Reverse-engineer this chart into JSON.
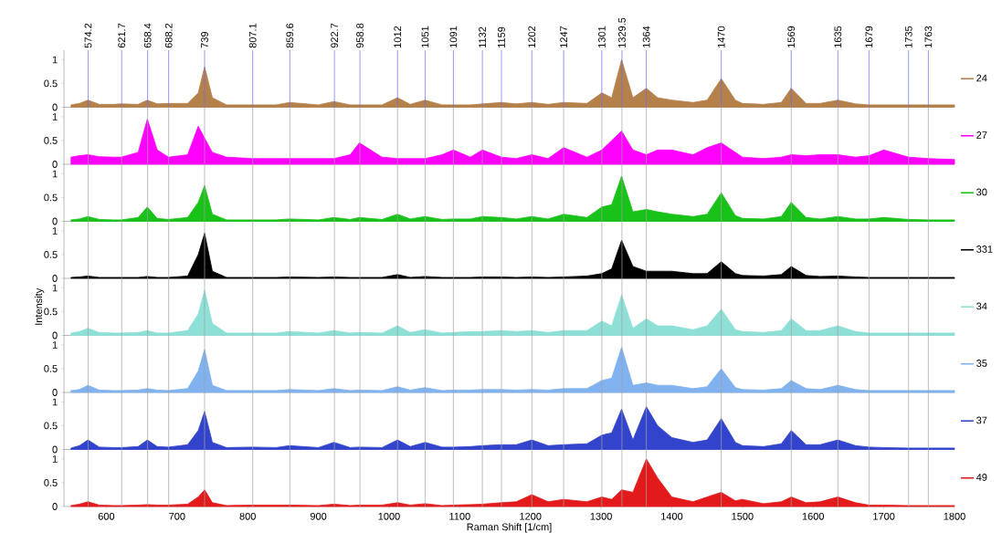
{
  "chart_data": [
    {
      "type": "area",
      "x": [
        550,
        562,
        574,
        590,
        610,
        621,
        645,
        658,
        672,
        688,
        715,
        730,
        739,
        750,
        770,
        807,
        840,
        859,
        900,
        922,
        945,
        958,
        990,
        1012,
        1030,
        1051,
        1075,
        1091,
        1115,
        1132,
        1159,
        1180,
        1202,
        1225,
        1247,
        1280,
        1301,
        1315,
        1329,
        1345,
        1364,
        1380,
        1400,
        1430,
        1450,
        1470,
        1490,
        1500,
        1530,
        1555,
        1569,
        1590,
        1610,
        1635,
        1660,
        1679,
        1700,
        1735,
        1763,
        1800
      ],
      "xlim": [
        540,
        1800
      ],
      "ylim": [
        0,
        1.2
      ],
      "yticks": [
        0,
        0.5,
        1
      ],
      "tick_labels": "y",
      "legend": "right",
      "series": [
        {
          "name": "24",
          "color": "#b5814a",
          "values": [
            0.05,
            0.08,
            0.15,
            0.06,
            0.06,
            0.07,
            0.06,
            0.15,
            0.07,
            0.08,
            0.08,
            0.3,
            0.85,
            0.2,
            0.05,
            0.05,
            0.05,
            0.1,
            0.05,
            0.12,
            0.05,
            0.05,
            0.05,
            0.2,
            0.06,
            0.15,
            0.05,
            0.05,
            0.05,
            0.07,
            0.1,
            0.07,
            0.1,
            0.06,
            0.1,
            0.08,
            0.3,
            0.2,
            1.0,
            0.2,
            0.4,
            0.2,
            0.15,
            0.1,
            0.15,
            0.6,
            0.15,
            0.08,
            0.06,
            0.1,
            0.4,
            0.08,
            0.08,
            0.15,
            0.07,
            0.05,
            0.05,
            0.05,
            0.05,
            0.05
          ]
        }
      ],
      "ref_lines": [
        {
          "axis": "x",
          "value": 574.2,
          "label": "574.2",
          "color": "#6a6aee"
        },
        {
          "axis": "x",
          "value": 621.7,
          "label": "621.7",
          "color": "#6a6aee"
        },
        {
          "axis": "x",
          "value": 658.4,
          "label": "658.4",
          "color": "#6a6aee"
        },
        {
          "axis": "x",
          "value": 688.2,
          "label": "688.2",
          "color": "#6a6aee"
        },
        {
          "axis": "x",
          "value": 739,
          "label": "739",
          "color": "#6a6aee"
        },
        {
          "axis": "x",
          "value": 807.1,
          "label": "807.1",
          "color": "#6a6aee"
        },
        {
          "axis": "x",
          "value": 859.6,
          "label": "859.6",
          "color": "#6a6aee"
        },
        {
          "axis": "x",
          "value": 922.7,
          "label": "922.7",
          "color": "#6a6aee"
        },
        {
          "axis": "x",
          "value": 958.8,
          "label": "958.8",
          "color": "#6a6aee"
        },
        {
          "axis": "x",
          "value": 1012,
          "label": "1012",
          "color": "#6a6aee"
        },
        {
          "axis": "x",
          "value": 1051,
          "label": "1051",
          "color": "#6a6aee"
        },
        {
          "axis": "x",
          "value": 1091,
          "label": "1091",
          "color": "#6a6aee"
        },
        {
          "axis": "x",
          "value": 1132,
          "label": "1132",
          "color": "#6a6aee"
        },
        {
          "axis": "x",
          "value": 1159,
          "label": "1159",
          "color": "#6a6aee"
        },
        {
          "axis": "x",
          "value": 1202,
          "label": "1202",
          "color": "#6a6aee"
        },
        {
          "axis": "x",
          "value": 1247,
          "label": "1247",
          "color": "#6a6aee"
        },
        {
          "axis": "x",
          "value": 1301,
          "label": "1301",
          "color": "#6a6aee"
        },
        {
          "axis": "x",
          "value": 1329.5,
          "label": "1329.5",
          "color": "#6a6aee"
        },
        {
          "axis": "x",
          "value": 1364,
          "label": "1364",
          "color": "#6a6aee"
        },
        {
          "axis": "x",
          "value": 1470,
          "label": "1470",
          "color": "#6a6aee"
        },
        {
          "axis": "x",
          "value": 1569,
          "label": "1569",
          "color": "#6a6aee"
        },
        {
          "axis": "x",
          "value": 1635,
          "label": "1635",
          "color": "#6a6aee"
        },
        {
          "axis": "x",
          "value": 1679,
          "label": "1679",
          "color": "#6a6aee"
        },
        {
          "axis": "x",
          "value": 1735,
          "label": "1735",
          "color": "#6a6aee"
        },
        {
          "axis": "x",
          "value": 1763,
          "label": "1763",
          "color": "#6a6aee"
        }
      ]
    },
    {
      "type": "area",
      "x": [
        550,
        562,
        574,
        590,
        610,
        621,
        645,
        658,
        672,
        688,
        715,
        730,
        739,
        750,
        770,
        807,
        840,
        859,
        900,
        922,
        945,
        958,
        990,
        1012,
        1030,
        1051,
        1075,
        1091,
        1115,
        1132,
        1159,
        1180,
        1202,
        1225,
        1247,
        1280,
        1301,
        1315,
        1329,
        1345,
        1364,
        1380,
        1400,
        1430,
        1450,
        1470,
        1490,
        1500,
        1530,
        1555,
        1569,
        1590,
        1610,
        1635,
        1660,
        1679,
        1700,
        1735,
        1763,
        1800
      ],
      "xlim": [
        540,
        1800
      ],
      "ylim": [
        0,
        1.2
      ],
      "yticks": [
        0,
        0.5,
        1
      ],
      "tick_labels": "y",
      "legend": "right",
      "series": [
        {
          "name": "27",
          "color": "#ff00ff",
          "values": [
            0.15,
            0.18,
            0.2,
            0.16,
            0.15,
            0.15,
            0.25,
            0.95,
            0.3,
            0.15,
            0.2,
            0.8,
            0.55,
            0.25,
            0.15,
            0.12,
            0.12,
            0.12,
            0.12,
            0.12,
            0.2,
            0.45,
            0.15,
            0.12,
            0.12,
            0.12,
            0.2,
            0.3,
            0.15,
            0.3,
            0.15,
            0.12,
            0.2,
            0.12,
            0.35,
            0.15,
            0.3,
            0.5,
            0.7,
            0.3,
            0.2,
            0.3,
            0.3,
            0.2,
            0.35,
            0.45,
            0.25,
            0.15,
            0.12,
            0.15,
            0.2,
            0.18,
            0.2,
            0.2,
            0.15,
            0.18,
            0.3,
            0.15,
            0.12,
            0.1
          ]
        }
      ],
      "ref_lines": [
        {
          "axis": "x",
          "value": 574.2,
          "color": "#a0a0a0"
        },
        {
          "axis": "x",
          "value": 621.7,
          "color": "#a0a0a0"
        },
        {
          "axis": "x",
          "value": 658.4,
          "color": "#a0a0a0"
        },
        {
          "axis": "x",
          "value": 688.2,
          "color": "#a0a0a0"
        },
        {
          "axis": "x",
          "value": 739,
          "color": "#a0a0a0"
        },
        {
          "axis": "x",
          "value": 807.1,
          "color": "#a0a0a0"
        },
        {
          "axis": "x",
          "value": 859.6,
          "color": "#a0a0a0"
        },
        {
          "axis": "x",
          "value": 922.7,
          "color": "#a0a0a0"
        },
        {
          "axis": "x",
          "value": 958.8,
          "color": "#a0a0a0"
        },
        {
          "axis": "x",
          "value": 1012,
          "color": "#a0a0a0"
        },
        {
          "axis": "x",
          "value": 1051,
          "color": "#a0a0a0"
        },
        {
          "axis": "x",
          "value": 1091,
          "color": "#a0a0a0"
        },
        {
          "axis": "x",
          "value": 1132,
          "color": "#a0a0a0"
        },
        {
          "axis": "x",
          "value": 1159,
          "color": "#a0a0a0"
        },
        {
          "axis": "x",
          "value": 1202,
          "color": "#a0a0a0"
        },
        {
          "axis": "x",
          "value": 1247,
          "color": "#a0a0a0"
        },
        {
          "axis": "x",
          "value": 1301,
          "color": "#a0a0a0"
        },
        {
          "axis": "x",
          "value": 1329.5,
          "color": "#a0a0a0"
        },
        {
          "axis": "x",
          "value": 1364,
          "color": "#a0a0a0"
        },
        {
          "axis": "x",
          "value": 1470,
          "color": "#a0a0a0"
        },
        {
          "axis": "x",
          "value": 1569,
          "color": "#a0a0a0"
        },
        {
          "axis": "x",
          "value": 1635,
          "color": "#a0a0a0"
        },
        {
          "axis": "x",
          "value": 1679,
          "color": "#a0a0a0"
        },
        {
          "axis": "x",
          "value": 1735,
          "color": "#a0a0a0"
        },
        {
          "axis": "x",
          "value": 1763,
          "color": "#a0a0a0"
        }
      ]
    },
    {
      "type": "area",
      "x": [
        550,
        562,
        574,
        590,
        610,
        621,
        645,
        658,
        672,
        688,
        715,
        730,
        739,
        750,
        770,
        807,
        840,
        859,
        900,
        922,
        945,
        958,
        990,
        1012,
        1030,
        1051,
        1075,
        1091,
        1115,
        1132,
        1159,
        1180,
        1202,
        1225,
        1247,
        1280,
        1301,
        1315,
        1329,
        1345,
        1364,
        1380,
        1400,
        1430,
        1450,
        1470,
        1490,
        1500,
        1530,
        1555,
        1569,
        1590,
        1610,
        1635,
        1660,
        1679,
        1700,
        1735,
        1763,
        1800
      ],
      "xlim": [
        540,
        1800
      ],
      "ylim": [
        0,
        1.2
      ],
      "yticks": [
        0,
        0.5,
        1
      ],
      "tick_labels": "y",
      "legend": "right",
      "series": [
        {
          "name": "30",
          "color": "#19c219",
          "values": [
            0.03,
            0.05,
            0.1,
            0.04,
            0.03,
            0.03,
            0.08,
            0.3,
            0.06,
            0.04,
            0.08,
            0.4,
            0.75,
            0.15,
            0.03,
            0.03,
            0.03,
            0.05,
            0.03,
            0.08,
            0.04,
            0.08,
            0.04,
            0.15,
            0.05,
            0.1,
            0.04,
            0.05,
            0.05,
            0.1,
            0.08,
            0.05,
            0.1,
            0.05,
            0.15,
            0.08,
            0.3,
            0.35,
            0.95,
            0.2,
            0.25,
            0.2,
            0.15,
            0.1,
            0.15,
            0.6,
            0.12,
            0.06,
            0.05,
            0.1,
            0.4,
            0.08,
            0.05,
            0.1,
            0.05,
            0.05,
            0.08,
            0.04,
            0.03,
            0.03
          ]
        }
      ],
      "ref_lines": [
        {
          "axis": "x",
          "value": 574.2,
          "color": "#a0a0a0"
        },
        {
          "axis": "x",
          "value": 621.7,
          "color": "#a0a0a0"
        },
        {
          "axis": "x",
          "value": 658.4,
          "color": "#a0a0a0"
        },
        {
          "axis": "x",
          "value": 688.2,
          "color": "#a0a0a0"
        },
        {
          "axis": "x",
          "value": 739,
          "color": "#a0a0a0"
        },
        {
          "axis": "x",
          "value": 807.1,
          "color": "#a0a0a0"
        },
        {
          "axis": "x",
          "value": 859.6,
          "color": "#a0a0a0"
        },
        {
          "axis": "x",
          "value": 922.7,
          "color": "#a0a0a0"
        },
        {
          "axis": "x",
          "value": 958.8,
          "color": "#a0a0a0"
        },
        {
          "axis": "x",
          "value": 1012,
          "color": "#a0a0a0"
        },
        {
          "axis": "x",
          "value": 1051,
          "color": "#a0a0a0"
        },
        {
          "axis": "x",
          "value": 1091,
          "color": "#a0a0a0"
        },
        {
          "axis": "x",
          "value": 1132,
          "color": "#a0a0a0"
        },
        {
          "axis": "x",
          "value": 1159,
          "color": "#a0a0a0"
        },
        {
          "axis": "x",
          "value": 1202,
          "color": "#a0a0a0"
        },
        {
          "axis": "x",
          "value": 1247,
          "color": "#a0a0a0"
        },
        {
          "axis": "x",
          "value": 1301,
          "color": "#a0a0a0"
        },
        {
          "axis": "x",
          "value": 1329.5,
          "color": "#a0a0a0"
        },
        {
          "axis": "x",
          "value": 1364,
          "color": "#a0a0a0"
        },
        {
          "axis": "x",
          "value": 1470,
          "color": "#a0a0a0"
        },
        {
          "axis": "x",
          "value": 1569,
          "color": "#a0a0a0"
        },
        {
          "axis": "x",
          "value": 1635,
          "color": "#a0a0a0"
        },
        {
          "axis": "x",
          "value": 1679,
          "color": "#a0a0a0"
        },
        {
          "axis": "x",
          "value": 1735,
          "color": "#a0a0a0"
        },
        {
          "axis": "x",
          "value": 1763,
          "color": "#a0a0a0"
        }
      ]
    },
    {
      "type": "area",
      "x": [
        550,
        562,
        574,
        590,
        610,
        621,
        645,
        658,
        672,
        688,
        715,
        730,
        739,
        750,
        770,
        807,
        840,
        859,
        900,
        922,
        945,
        958,
        990,
        1012,
        1030,
        1051,
        1075,
        1091,
        1115,
        1132,
        1159,
        1180,
        1202,
        1225,
        1247,
        1280,
        1301,
        1315,
        1329,
        1345,
        1364,
        1380,
        1400,
        1430,
        1450,
        1470,
        1490,
        1500,
        1530,
        1555,
        1569,
        1590,
        1610,
        1635,
        1660,
        1679,
        1700,
        1735,
        1763,
        1800
      ],
      "xlim": [
        540,
        1800
      ],
      "ylim": [
        0,
        1.2
      ],
      "yticks": [
        0,
        0.5,
        1
      ],
      "tick_labels": "y",
      "legend": "right",
      "series": [
        {
          "name": "331",
          "color": "#000000",
          "values": [
            0.02,
            0.03,
            0.05,
            0.02,
            0.02,
            0.02,
            0.02,
            0.04,
            0.02,
            0.02,
            0.05,
            0.5,
            0.95,
            0.15,
            0.02,
            0.02,
            0.02,
            0.03,
            0.02,
            0.03,
            0.02,
            0.02,
            0.02,
            0.08,
            0.02,
            0.04,
            0.02,
            0.02,
            0.02,
            0.03,
            0.03,
            0.02,
            0.03,
            0.02,
            0.03,
            0.05,
            0.1,
            0.2,
            0.8,
            0.25,
            0.15,
            0.15,
            0.15,
            0.1,
            0.1,
            0.35,
            0.1,
            0.06,
            0.05,
            0.08,
            0.25,
            0.06,
            0.04,
            0.05,
            0.03,
            0.02,
            0.02,
            0.02,
            0.02,
            0.02
          ]
        }
      ],
      "ref_lines": [
        {
          "axis": "x",
          "value": 574.2,
          "color": "#a0a0a0"
        },
        {
          "axis": "x",
          "value": 621.7,
          "color": "#a0a0a0"
        },
        {
          "axis": "x",
          "value": 658.4,
          "color": "#a0a0a0"
        },
        {
          "axis": "x",
          "value": 688.2,
          "color": "#a0a0a0"
        },
        {
          "axis": "x",
          "value": 739,
          "color": "#a0a0a0"
        },
        {
          "axis": "x",
          "value": 807.1,
          "color": "#a0a0a0"
        },
        {
          "axis": "x",
          "value": 859.6,
          "color": "#a0a0a0"
        },
        {
          "axis": "x",
          "value": 922.7,
          "color": "#a0a0a0"
        },
        {
          "axis": "x",
          "value": 958.8,
          "color": "#a0a0a0"
        },
        {
          "axis": "x",
          "value": 1012,
          "color": "#a0a0a0"
        },
        {
          "axis": "x",
          "value": 1051,
          "color": "#a0a0a0"
        },
        {
          "axis": "x",
          "value": 1091,
          "color": "#a0a0a0"
        },
        {
          "axis": "x",
          "value": 1132,
          "color": "#a0a0a0"
        },
        {
          "axis": "x",
          "value": 1159,
          "color": "#a0a0a0"
        },
        {
          "axis": "x",
          "value": 1202,
          "color": "#a0a0a0"
        },
        {
          "axis": "x",
          "value": 1247,
          "color": "#a0a0a0"
        },
        {
          "axis": "x",
          "value": 1301,
          "color": "#a0a0a0"
        },
        {
          "axis": "x",
          "value": 1329.5,
          "color": "#a0a0a0"
        },
        {
          "axis": "x",
          "value": 1364,
          "color": "#a0a0a0"
        },
        {
          "axis": "x",
          "value": 1470,
          "color": "#a0a0a0"
        },
        {
          "axis": "x",
          "value": 1569,
          "color": "#a0a0a0"
        },
        {
          "axis": "x",
          "value": 1635,
          "color": "#a0a0a0"
        },
        {
          "axis": "x",
          "value": 1679,
          "color": "#a0a0a0"
        },
        {
          "axis": "x",
          "value": 1735,
          "color": "#a0a0a0"
        },
        {
          "axis": "x",
          "value": 1763,
          "color": "#a0a0a0"
        }
      ]
    },
    {
      "type": "area",
      "ylabel": "Intensity",
      "x": [
        550,
        562,
        574,
        590,
        610,
        621,
        645,
        658,
        672,
        688,
        715,
        730,
        739,
        750,
        770,
        807,
        840,
        859,
        900,
        922,
        945,
        958,
        990,
        1012,
        1030,
        1051,
        1075,
        1091,
        1115,
        1132,
        1159,
        1180,
        1202,
        1225,
        1247,
        1280,
        1301,
        1315,
        1329,
        1345,
        1364,
        1380,
        1400,
        1430,
        1450,
        1470,
        1490,
        1500,
        1530,
        1555,
        1569,
        1590,
        1610,
        1635,
        1660,
        1679,
        1700,
        1735,
        1763,
        1800
      ],
      "xlim": [
        540,
        1800
      ],
      "ylim": [
        0,
        1.2
      ],
      "yticks": [
        0,
        0.5,
        1
      ],
      "tick_labels": "y",
      "legend": "right",
      "series": [
        {
          "name": "34",
          "color": "#8ee0d6",
          "values": [
            0.05,
            0.08,
            0.15,
            0.06,
            0.05,
            0.05,
            0.06,
            0.1,
            0.05,
            0.05,
            0.1,
            0.45,
            0.95,
            0.25,
            0.05,
            0.05,
            0.05,
            0.08,
            0.05,
            0.1,
            0.05,
            0.06,
            0.05,
            0.2,
            0.06,
            0.12,
            0.05,
            0.06,
            0.08,
            0.08,
            0.1,
            0.08,
            0.1,
            0.06,
            0.1,
            0.1,
            0.3,
            0.2,
            0.85,
            0.15,
            0.35,
            0.2,
            0.2,
            0.12,
            0.2,
            0.55,
            0.12,
            0.08,
            0.06,
            0.1,
            0.35,
            0.1,
            0.1,
            0.2,
            0.08,
            0.05,
            0.05,
            0.05,
            0.05,
            0.05
          ]
        }
      ],
      "ref_lines": [
        {
          "axis": "x",
          "value": 574.2,
          "color": "#a0a0a0"
        },
        {
          "axis": "x",
          "value": 621.7,
          "color": "#a0a0a0"
        },
        {
          "axis": "x",
          "value": 658.4,
          "color": "#a0a0a0"
        },
        {
          "axis": "x",
          "value": 688.2,
          "color": "#a0a0a0"
        },
        {
          "axis": "x",
          "value": 739,
          "color": "#a0a0a0"
        },
        {
          "axis": "x",
          "value": 807.1,
          "color": "#a0a0a0"
        },
        {
          "axis": "x",
          "value": 859.6,
          "color": "#a0a0a0"
        },
        {
          "axis": "x",
          "value": 922.7,
          "color": "#a0a0a0"
        },
        {
          "axis": "x",
          "value": 958.8,
          "color": "#a0a0a0"
        },
        {
          "axis": "x",
          "value": 1012,
          "color": "#a0a0a0"
        },
        {
          "axis": "x",
          "value": 1051,
          "color": "#a0a0a0"
        },
        {
          "axis": "x",
          "value": 1091,
          "color": "#a0a0a0"
        },
        {
          "axis": "x",
          "value": 1132,
          "color": "#a0a0a0"
        },
        {
          "axis": "x",
          "value": 1159,
          "color": "#a0a0a0"
        },
        {
          "axis": "x",
          "value": 1202,
          "color": "#a0a0a0"
        },
        {
          "axis": "x",
          "value": 1247,
          "color": "#a0a0a0"
        },
        {
          "axis": "x",
          "value": 1301,
          "color": "#a0a0a0"
        },
        {
          "axis": "x",
          "value": 1329.5,
          "color": "#a0a0a0"
        },
        {
          "axis": "x",
          "value": 1364,
          "color": "#a0a0a0"
        },
        {
          "axis": "x",
          "value": 1470,
          "color": "#a0a0a0"
        },
        {
          "axis": "x",
          "value": 1569,
          "color": "#a0a0a0"
        },
        {
          "axis": "x",
          "value": 1635,
          "color": "#a0a0a0"
        },
        {
          "axis": "x",
          "value": 1679,
          "color": "#a0a0a0"
        },
        {
          "axis": "x",
          "value": 1735,
          "color": "#a0a0a0"
        },
        {
          "axis": "x",
          "value": 1763,
          "color": "#a0a0a0"
        }
      ]
    },
    {
      "type": "area",
      "x": [
        550,
        562,
        574,
        590,
        610,
        621,
        645,
        658,
        672,
        688,
        715,
        730,
        739,
        750,
        770,
        807,
        840,
        859,
        900,
        922,
        945,
        958,
        990,
        1012,
        1030,
        1051,
        1075,
        1091,
        1115,
        1132,
        1159,
        1180,
        1202,
        1225,
        1247,
        1280,
        1301,
        1315,
        1329,
        1345,
        1364,
        1380,
        1400,
        1430,
        1450,
        1470,
        1490,
        1500,
        1530,
        1555,
        1569,
        1590,
        1610,
        1635,
        1660,
        1679,
        1700,
        1735,
        1763,
        1800
      ],
      "xlim": [
        540,
        1800
      ],
      "ylim": [
        0,
        1.2
      ],
      "yticks": [
        0,
        0.5,
        1
      ],
      "tick_labels": "y",
      "legend": "right",
      "series": [
        {
          "name": "35",
          "color": "#7fb2ee",
          "values": [
            0.04,
            0.06,
            0.15,
            0.05,
            0.04,
            0.04,
            0.05,
            0.08,
            0.05,
            0.04,
            0.08,
            0.45,
            0.9,
            0.15,
            0.04,
            0.04,
            0.04,
            0.06,
            0.04,
            0.08,
            0.04,
            0.05,
            0.04,
            0.12,
            0.05,
            0.1,
            0.04,
            0.05,
            0.05,
            0.06,
            0.06,
            0.05,
            0.06,
            0.05,
            0.08,
            0.08,
            0.25,
            0.3,
            0.95,
            0.15,
            0.2,
            0.15,
            0.15,
            0.08,
            0.12,
            0.5,
            0.1,
            0.06,
            0.05,
            0.08,
            0.25,
            0.08,
            0.06,
            0.15,
            0.06,
            0.04,
            0.04,
            0.04,
            0.04,
            0.04
          ]
        }
      ],
      "ref_lines": [
        {
          "axis": "x",
          "value": 574.2,
          "color": "#a0a0a0"
        },
        {
          "axis": "x",
          "value": 621.7,
          "color": "#a0a0a0"
        },
        {
          "axis": "x",
          "value": 658.4,
          "color": "#a0a0a0"
        },
        {
          "axis": "x",
          "value": 688.2,
          "color": "#a0a0a0"
        },
        {
          "axis": "x",
          "value": 739,
          "color": "#a0a0a0"
        },
        {
          "axis": "x",
          "value": 807.1,
          "color": "#a0a0a0"
        },
        {
          "axis": "x",
          "value": 859.6,
          "color": "#a0a0a0"
        },
        {
          "axis": "x",
          "value": 922.7,
          "color": "#a0a0a0"
        },
        {
          "axis": "x",
          "value": 958.8,
          "color": "#a0a0a0"
        },
        {
          "axis": "x",
          "value": 1012,
          "color": "#a0a0a0"
        },
        {
          "axis": "x",
          "value": 1051,
          "color": "#a0a0a0"
        },
        {
          "axis": "x",
          "value": 1091,
          "color": "#a0a0a0"
        },
        {
          "axis": "x",
          "value": 1132,
          "color": "#a0a0a0"
        },
        {
          "axis": "x",
          "value": 1159,
          "color": "#a0a0a0"
        },
        {
          "axis": "x",
          "value": 1202,
          "color": "#a0a0a0"
        },
        {
          "axis": "x",
          "value": 1247,
          "color": "#a0a0a0"
        },
        {
          "axis": "x",
          "value": 1301,
          "color": "#a0a0a0"
        },
        {
          "axis": "x",
          "value": 1329.5,
          "color": "#a0a0a0"
        },
        {
          "axis": "x",
          "value": 1364,
          "color": "#a0a0a0"
        },
        {
          "axis": "x",
          "value": 1470,
          "color": "#a0a0a0"
        },
        {
          "axis": "x",
          "value": 1569,
          "color": "#a0a0a0"
        },
        {
          "axis": "x",
          "value": 1635,
          "color": "#a0a0a0"
        },
        {
          "axis": "x",
          "value": 1679,
          "color": "#a0a0a0"
        },
        {
          "axis": "x",
          "value": 1735,
          "color": "#a0a0a0"
        },
        {
          "axis": "x",
          "value": 1763,
          "color": "#a0a0a0"
        }
      ]
    },
    {
      "type": "area",
      "x": [
        550,
        562,
        574,
        590,
        610,
        621,
        645,
        658,
        672,
        688,
        715,
        730,
        739,
        750,
        770,
        807,
        840,
        859,
        900,
        922,
        945,
        958,
        990,
        1012,
        1030,
        1051,
        1075,
        1091,
        1115,
        1132,
        1159,
        1180,
        1202,
        1225,
        1247,
        1280,
        1301,
        1315,
        1329,
        1345,
        1364,
        1380,
        1400,
        1430,
        1450,
        1470,
        1490,
        1500,
        1530,
        1555,
        1569,
        1590,
        1610,
        1635,
        1660,
        1679,
        1700,
        1735,
        1763,
        1800
      ],
      "xlim": [
        540,
        1800
      ],
      "ylim": [
        0,
        1.2
      ],
      "yticks": [
        0,
        0.5,
        1
      ],
      "tick_labels": "y",
      "legend": "right",
      "series": [
        {
          "name": "37",
          "color": "#3344cc",
          "values": [
            0.03,
            0.08,
            0.2,
            0.05,
            0.04,
            0.04,
            0.06,
            0.2,
            0.06,
            0.05,
            0.1,
            0.4,
            0.8,
            0.15,
            0.04,
            0.05,
            0.04,
            0.08,
            0.04,
            0.15,
            0.04,
            0.05,
            0.04,
            0.2,
            0.06,
            0.15,
            0.05,
            0.05,
            0.06,
            0.08,
            0.1,
            0.1,
            0.2,
            0.08,
            0.1,
            0.12,
            0.3,
            0.35,
            0.85,
            0.2,
            0.9,
            0.5,
            0.25,
            0.15,
            0.2,
            0.65,
            0.15,
            0.08,
            0.06,
            0.12,
            0.4,
            0.1,
            0.1,
            0.2,
            0.08,
            0.05,
            0.04,
            0.03,
            0.03,
            0.03
          ]
        }
      ],
      "ref_lines": [
        {
          "axis": "x",
          "value": 574.2,
          "color": "#a0a0a0"
        },
        {
          "axis": "x",
          "value": 621.7,
          "color": "#a0a0a0"
        },
        {
          "axis": "x",
          "value": 658.4,
          "color": "#a0a0a0"
        },
        {
          "axis": "x",
          "value": 688.2,
          "color": "#a0a0a0"
        },
        {
          "axis": "x",
          "value": 739,
          "color": "#a0a0a0"
        },
        {
          "axis": "x",
          "value": 807.1,
          "color": "#a0a0a0"
        },
        {
          "axis": "x",
          "value": 859.6,
          "color": "#a0a0a0"
        },
        {
          "axis": "x",
          "value": 922.7,
          "color": "#a0a0a0"
        },
        {
          "axis": "x",
          "value": 958.8,
          "color": "#a0a0a0"
        },
        {
          "axis": "x",
          "value": 1012,
          "color": "#a0a0a0"
        },
        {
          "axis": "x",
          "value": 1051,
          "color": "#a0a0a0"
        },
        {
          "axis": "x",
          "value": 1091,
          "color": "#a0a0a0"
        },
        {
          "axis": "x",
          "value": 1132,
          "color": "#a0a0a0"
        },
        {
          "axis": "x",
          "value": 1159,
          "color": "#a0a0a0"
        },
        {
          "axis": "x",
          "value": 1202,
          "color": "#a0a0a0"
        },
        {
          "axis": "x",
          "value": 1247,
          "color": "#a0a0a0"
        },
        {
          "axis": "x",
          "value": 1301,
          "color": "#a0a0a0"
        },
        {
          "axis": "x",
          "value": 1329.5,
          "color": "#a0a0a0"
        },
        {
          "axis": "x",
          "value": 1364,
          "color": "#a0a0a0"
        },
        {
          "axis": "x",
          "value": 1470,
          "color": "#a0a0a0"
        },
        {
          "axis": "x",
          "value": 1569,
          "color": "#a0a0a0"
        },
        {
          "axis": "x",
          "value": 1635,
          "color": "#a0a0a0"
        },
        {
          "axis": "x",
          "value": 1679,
          "color": "#a0a0a0"
        },
        {
          "axis": "x",
          "value": 1735,
          "color": "#a0a0a0"
        },
        {
          "axis": "x",
          "value": 1763,
          "color": "#a0a0a0"
        }
      ]
    },
    {
      "type": "area",
      "xlabel": "Raman Shift [1/cm]",
      "x": [
        550,
        562,
        574,
        590,
        610,
        621,
        645,
        658,
        672,
        688,
        715,
        730,
        739,
        750,
        770,
        807,
        840,
        859,
        900,
        922,
        945,
        958,
        990,
        1012,
        1030,
        1051,
        1075,
        1091,
        1115,
        1132,
        1159,
        1180,
        1202,
        1225,
        1247,
        1280,
        1301,
        1315,
        1329,
        1345,
        1364,
        1380,
        1400,
        1430,
        1450,
        1470,
        1490,
        1500,
        1530,
        1555,
        1569,
        1590,
        1610,
        1635,
        1660,
        1679,
        1700,
        1735,
        1763,
        1800
      ],
      "xlim": [
        540,
        1800
      ],
      "xticks": [
        600,
        700,
        800,
        900,
        1000,
        1100,
        1200,
        1300,
        1400,
        1500,
        1600,
        1700,
        1800
      ],
      "ylim": [
        0,
        1.2
      ],
      "yticks": [
        0,
        0.5,
        1
      ],
      "legend": "right",
      "series": [
        {
          "name": "49",
          "color": "#e31a1c",
          "values": [
            0.02,
            0.05,
            0.1,
            0.03,
            0.02,
            0.02,
            0.03,
            0.04,
            0.03,
            0.03,
            0.05,
            0.2,
            0.35,
            0.08,
            0.02,
            0.03,
            0.03,
            0.03,
            0.02,
            0.05,
            0.02,
            0.03,
            0.03,
            0.08,
            0.03,
            0.06,
            0.02,
            0.03,
            0.04,
            0.05,
            0.08,
            0.1,
            0.25,
            0.1,
            0.15,
            0.1,
            0.2,
            0.15,
            0.35,
            0.3,
            1.0,
            0.6,
            0.2,
            0.1,
            0.2,
            0.3,
            0.12,
            0.15,
            0.06,
            0.1,
            0.2,
            0.08,
            0.1,
            0.2,
            0.08,
            0.03,
            0.03,
            0.02,
            0.02,
            0.02
          ]
        }
      ],
      "ref_lines": [
        {
          "axis": "x",
          "value": 574.2,
          "color": "#a0a0a0"
        },
        {
          "axis": "x",
          "value": 621.7,
          "color": "#a0a0a0"
        },
        {
          "axis": "x",
          "value": 658.4,
          "color": "#a0a0a0"
        },
        {
          "axis": "x",
          "value": 688.2,
          "color": "#a0a0a0"
        },
        {
          "axis": "x",
          "value": 739,
          "color": "#a0a0a0"
        },
        {
          "axis": "x",
          "value": 807.1,
          "color": "#a0a0a0"
        },
        {
          "axis": "x",
          "value": 859.6,
          "color": "#a0a0a0"
        },
        {
          "axis": "x",
          "value": 922.7,
          "color": "#a0a0a0"
        },
        {
          "axis": "x",
          "value": 958.8,
          "color": "#a0a0a0"
        },
        {
          "axis": "x",
          "value": 1012,
          "color": "#a0a0a0"
        },
        {
          "axis": "x",
          "value": 1051,
          "color": "#a0a0a0"
        },
        {
          "axis": "x",
          "value": 1091,
          "color": "#a0a0a0"
        },
        {
          "axis": "x",
          "value": 1132,
          "color": "#a0a0a0"
        },
        {
          "axis": "x",
          "value": 1159,
          "color": "#a0a0a0"
        },
        {
          "axis": "x",
          "value": 1202,
          "color": "#a0a0a0"
        },
        {
          "axis": "x",
          "value": 1247,
          "color": "#a0a0a0"
        },
        {
          "axis": "x",
          "value": 1301,
          "color": "#a0a0a0"
        },
        {
          "axis": "x",
          "value": 1329.5,
          "color": "#a0a0a0"
        },
        {
          "axis": "x",
          "value": 1364,
          "color": "#a0a0a0"
        },
        {
          "axis": "x",
          "value": 1470,
          "color": "#a0a0a0"
        },
        {
          "axis": "x",
          "value": 1569,
          "color": "#a0a0a0"
        },
        {
          "axis": "x",
          "value": 1635,
          "color": "#a0a0a0"
        },
        {
          "axis": "x",
          "value": 1679,
          "color": "#a0a0a0"
        },
        {
          "axis": "x",
          "value": 1735,
          "color": "#a0a0a0"
        },
        {
          "axis": "x",
          "value": 1763,
          "color": "#a0a0a0"
        }
      ]
    }
  ]
}
